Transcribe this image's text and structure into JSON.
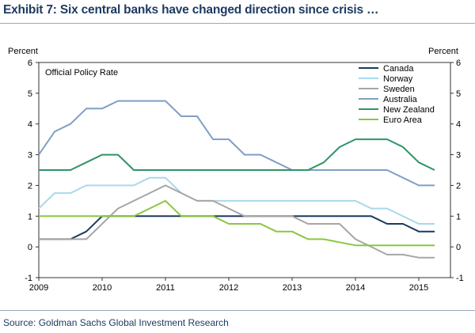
{
  "header": {
    "title": "Exhibit 7: Six central banks have changed direction since crisis …"
  },
  "footer": {
    "source": "Source: Goldman Sachs Global Investment Research"
  },
  "chart_data": {
    "type": "line",
    "inner_label": "Official Policy Rate",
    "ylabel_left": "Percent",
    "ylabel_right": "Percent",
    "xlabel": "",
    "ylim": [
      -1,
      6
    ],
    "yticks": [
      -1,
      0,
      1,
      2,
      3,
      4,
      5,
      6
    ],
    "xlim": [
      2009,
      2015.5
    ],
    "xticks": [
      2009,
      2010,
      2011,
      2012,
      2013,
      2014,
      2015
    ],
    "grid": false,
    "legend_position": "top-right",
    "series": [
      {
        "name": "Canada",
        "color": "#1b3a5c",
        "points": [
          [
            2009,
            0.25
          ],
          [
            2009.25,
            0.25
          ],
          [
            2009.5,
            0.25
          ],
          [
            2009.75,
            0.5
          ],
          [
            2010,
            1.0
          ],
          [
            2010.25,
            1.0
          ],
          [
            2010.5,
            1.0
          ],
          [
            2010.75,
            1.0
          ],
          [
            2011,
            1.0
          ],
          [
            2011.25,
            1.0
          ],
          [
            2011.5,
            1.0
          ],
          [
            2011.75,
            1.0
          ],
          [
            2012,
            1.0
          ],
          [
            2012.25,
            1.0
          ],
          [
            2012.5,
            1.0
          ],
          [
            2012.75,
            1.0
          ],
          [
            2013,
            1.0
          ],
          [
            2013.25,
            1.0
          ],
          [
            2013.5,
            1.0
          ],
          [
            2013.75,
            1.0
          ],
          [
            2014,
            1.0
          ],
          [
            2014.25,
            1.0
          ],
          [
            2014.5,
            0.75
          ],
          [
            2014.75,
            0.75
          ],
          [
            2015,
            0.5
          ],
          [
            2015.25,
            0.5
          ]
        ]
      },
      {
        "name": "Norway",
        "color": "#a9d8ec",
        "points": [
          [
            2009,
            1.25
          ],
          [
            2009.25,
            1.75
          ],
          [
            2009.5,
            1.75
          ],
          [
            2009.75,
            2.0
          ],
          [
            2010,
            2.0
          ],
          [
            2010.25,
            2.0
          ],
          [
            2010.5,
            2.0
          ],
          [
            2010.75,
            2.25
          ],
          [
            2011,
            2.25
          ],
          [
            2011.25,
            1.75
          ],
          [
            2011.5,
            1.5
          ],
          [
            2011.75,
            1.5
          ],
          [
            2012,
            1.5
          ],
          [
            2012.25,
            1.5
          ],
          [
            2012.5,
            1.5
          ],
          [
            2012.75,
            1.5
          ],
          [
            2013,
            1.5
          ],
          [
            2013.25,
            1.5
          ],
          [
            2013.5,
            1.5
          ],
          [
            2013.75,
            1.5
          ],
          [
            2014,
            1.5
          ],
          [
            2014.25,
            1.25
          ],
          [
            2014.5,
            1.25
          ],
          [
            2014.75,
            1.0
          ],
          [
            2015,
            0.75
          ],
          [
            2015.25,
            0.75
          ]
        ]
      },
      {
        "name": "Sweden",
        "color": "#a6a6a6",
        "points": [
          [
            2009,
            0.25
          ],
          [
            2009.25,
            0.25
          ],
          [
            2009.5,
            0.25
          ],
          [
            2009.75,
            0.25
          ],
          [
            2010,
            0.75
          ],
          [
            2010.25,
            1.25
          ],
          [
            2010.5,
            1.5
          ],
          [
            2010.75,
            1.75
          ],
          [
            2011,
            2.0
          ],
          [
            2011.25,
            1.75
          ],
          [
            2011.5,
            1.5
          ],
          [
            2011.75,
            1.5
          ],
          [
            2012,
            1.25
          ],
          [
            2012.25,
            1.0
          ],
          [
            2012.5,
            1.0
          ],
          [
            2012.75,
            1.0
          ],
          [
            2013,
            1.0
          ],
          [
            2013.25,
            0.75
          ],
          [
            2013.5,
            0.75
          ],
          [
            2013.75,
            0.75
          ],
          [
            2014,
            0.25
          ],
          [
            2014.25,
            0.0
          ],
          [
            2014.5,
            -0.25
          ],
          [
            2014.75,
            -0.25
          ],
          [
            2015,
            -0.35
          ],
          [
            2015.25,
            -0.35
          ]
        ]
      },
      {
        "name": "Australia",
        "color": "#7f9fc6",
        "points": [
          [
            2009,
            3.0
          ],
          [
            2009.25,
            3.75
          ],
          [
            2009.5,
            4.0
          ],
          [
            2009.75,
            4.5
          ],
          [
            2010,
            4.5
          ],
          [
            2010.25,
            4.75
          ],
          [
            2010.5,
            4.75
          ],
          [
            2010.75,
            4.75
          ],
          [
            2011,
            4.75
          ],
          [
            2011.25,
            4.25
          ],
          [
            2011.5,
            4.25
          ],
          [
            2011.75,
            3.5
          ],
          [
            2012,
            3.5
          ],
          [
            2012.25,
            3.0
          ],
          [
            2012.5,
            3.0
          ],
          [
            2012.75,
            2.75
          ],
          [
            2013,
            2.5
          ],
          [
            2013.25,
            2.5
          ],
          [
            2013.5,
            2.5
          ],
          [
            2013.75,
            2.5
          ],
          [
            2014,
            2.5
          ],
          [
            2014.25,
            2.5
          ],
          [
            2014.5,
            2.5
          ],
          [
            2014.75,
            2.25
          ],
          [
            2015,
            2.0
          ],
          [
            2015.25,
            2.0
          ]
        ]
      },
      {
        "name": "New Zealand",
        "color": "#2e9466",
        "points": [
          [
            2009,
            2.5
          ],
          [
            2009.25,
            2.5
          ],
          [
            2009.5,
            2.5
          ],
          [
            2009.75,
            2.75
          ],
          [
            2010,
            3.0
          ],
          [
            2010.25,
            3.0
          ],
          [
            2010.5,
            2.5
          ],
          [
            2010.75,
            2.5
          ],
          [
            2011,
            2.5
          ],
          [
            2011.25,
            2.5
          ],
          [
            2011.5,
            2.5
          ],
          [
            2011.75,
            2.5
          ],
          [
            2012,
            2.5
          ],
          [
            2012.25,
            2.5
          ],
          [
            2012.5,
            2.5
          ],
          [
            2012.75,
            2.5
          ],
          [
            2013,
            2.5
          ],
          [
            2013.25,
            2.5
          ],
          [
            2013.5,
            2.75
          ],
          [
            2013.75,
            3.25
          ],
          [
            2014,
            3.5
          ],
          [
            2014.25,
            3.5
          ],
          [
            2014.5,
            3.5
          ],
          [
            2014.75,
            3.25
          ],
          [
            2015,
            2.75
          ],
          [
            2015.25,
            2.5
          ]
        ]
      },
      {
        "name": "Euro Area",
        "color": "#8cc63f",
        "points": [
          [
            2009,
            1.0
          ],
          [
            2009.25,
            1.0
          ],
          [
            2009.5,
            1.0
          ],
          [
            2009.75,
            1.0
          ],
          [
            2010,
            1.0
          ],
          [
            2010.25,
            1.0
          ],
          [
            2010.5,
            1.0
          ],
          [
            2010.75,
            1.25
          ],
          [
            2011,
            1.5
          ],
          [
            2011.25,
            1.0
          ],
          [
            2011.5,
            1.0
          ],
          [
            2011.75,
            1.0
          ],
          [
            2012,
            0.75
          ],
          [
            2012.25,
            0.75
          ],
          [
            2012.5,
            0.75
          ],
          [
            2012.75,
            0.5
          ],
          [
            2013,
            0.5
          ],
          [
            2013.25,
            0.25
          ],
          [
            2013.5,
            0.25
          ],
          [
            2013.75,
            0.15
          ],
          [
            2014,
            0.05
          ],
          [
            2014.25,
            0.05
          ],
          [
            2014.5,
            0.05
          ],
          [
            2014.75,
            0.05
          ],
          [
            2015,
            0.05
          ],
          [
            2015.25,
            0.05
          ]
        ]
      }
    ]
  }
}
